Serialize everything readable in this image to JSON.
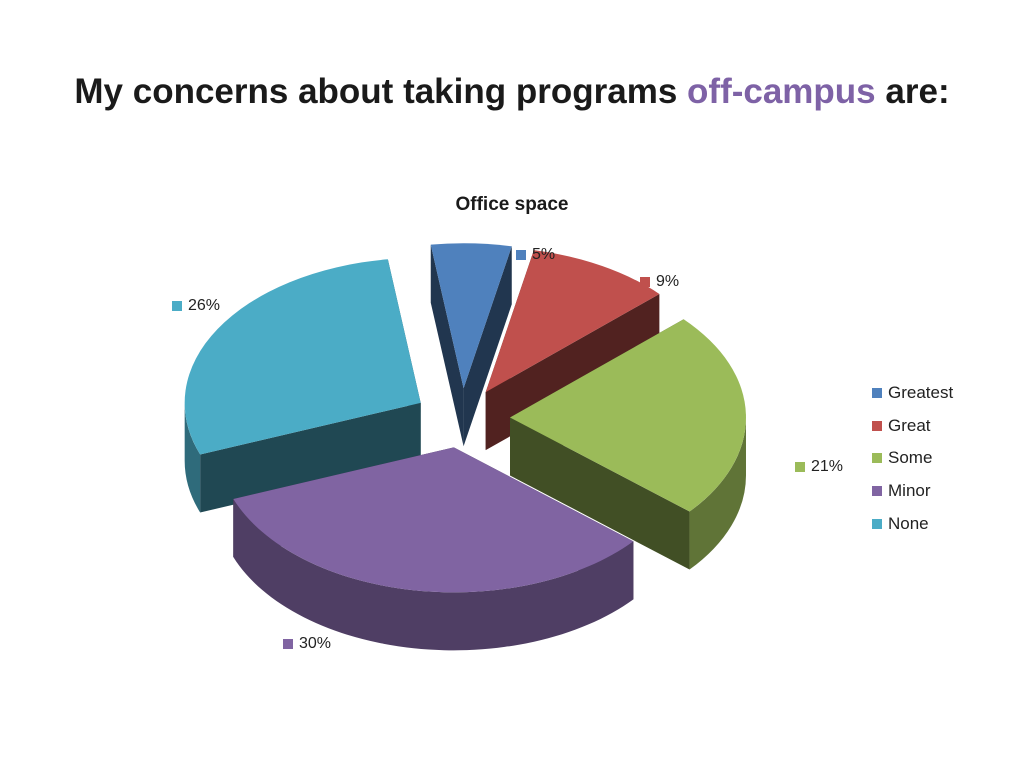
{
  "slide": {
    "title_before": "My concerns about taking programs",
    "title_accent": "off-campus",
    "title_after": "are:",
    "accent_color": "#7e62a6"
  },
  "chart_data": {
    "type": "pie",
    "title": "Office space",
    "exploded": true,
    "three_d": true,
    "legend_position": "right",
    "slices": [
      {
        "name": "Greatest",
        "value": 5,
        "label": "5%",
        "color": "#4f81bd"
      },
      {
        "name": "Great",
        "value": 9,
        "label": "9%",
        "color": "#c0504d"
      },
      {
        "name": "Some",
        "value": 21,
        "label": "21%",
        "color": "#9bbb59"
      },
      {
        "name": "Minor",
        "value": 30,
        "label": "30%",
        "color": "#8064a2"
      },
      {
        "name": "None",
        "value": 26,
        "label": "26%",
        "color": "#4bacc6"
      }
    ]
  }
}
